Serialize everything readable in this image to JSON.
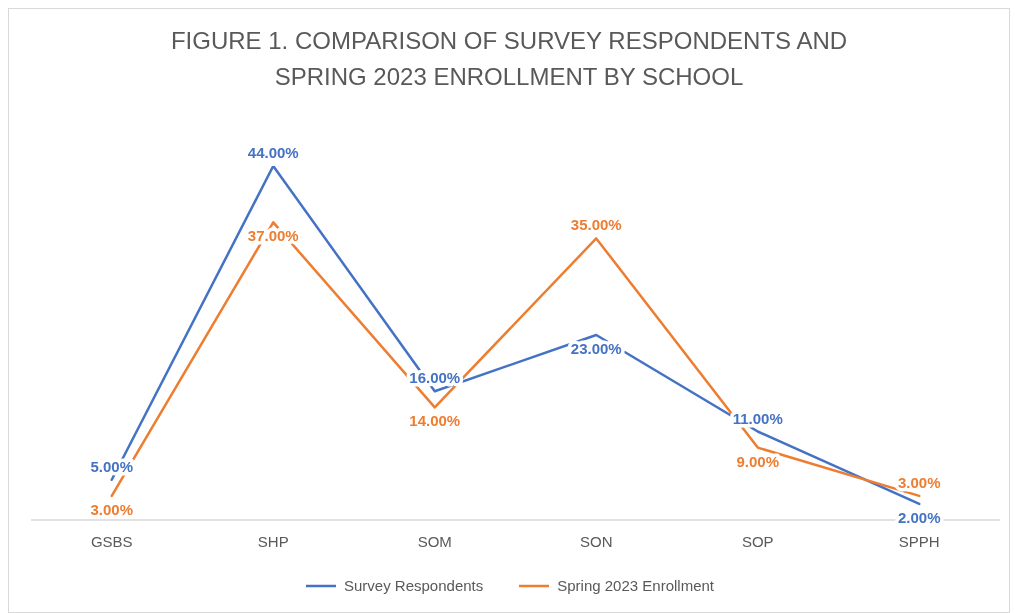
{
  "chart_data": {
    "type": "line",
    "title": "FIGURE 1. COMPARISON OF SURVEY RESPONDENTS AND SPRING 2023 ENROLLMENT BY SCHOOL",
    "categories": [
      "GSBS",
      "SHP",
      "SOM",
      "SON",
      "SOP",
      "SPPH"
    ],
    "series": [
      {
        "name": "Survey Respondents",
        "color": "#4472c4",
        "values": [
          5,
          44,
          16,
          23,
          11,
          2
        ],
        "value_labels": [
          "5.00%",
          "44.00%",
          "16.00%",
          "23.00%",
          "11.00%",
          "2.00%"
        ]
      },
      {
        "name": "Spring 2023 Enrollment",
        "color": "#ed7d31",
        "values": [
          3,
          37,
          14,
          35,
          9,
          3
        ],
        "value_labels": [
          "3.00%",
          "37.00%",
          "14.00%",
          "35.00%",
          "9.00%",
          "3.00%"
        ]
      }
    ],
    "legend": "bottom",
    "line_style": "solid"
  }
}
